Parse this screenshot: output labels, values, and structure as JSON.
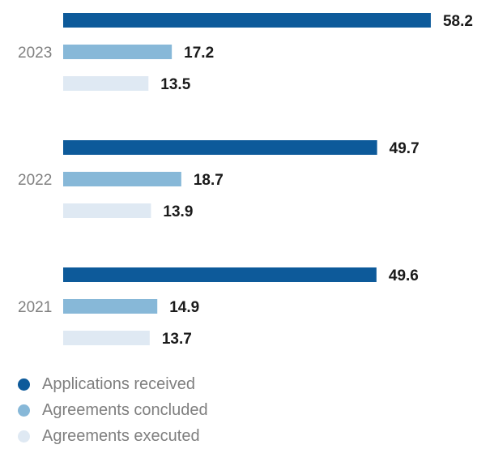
{
  "chart_data": {
    "type": "bar",
    "orientation": "horizontal",
    "categories": [
      "2023",
      "2022",
      "2021"
    ],
    "series": [
      {
        "name": "Applications received",
        "color": "#0d5a9a",
        "values": [
          58.2,
          49.7,
          49.6
        ]
      },
      {
        "name": "Agreements concluded",
        "color": "#87b8d8",
        "values": [
          17.2,
          18.7,
          14.9
        ]
      },
      {
        "name": "Agreements executed",
        "color": "#dfe9f3",
        "values": [
          13.5,
          13.9,
          13.7
        ]
      }
    ],
    "data_labels": true,
    "legend_position": "bottom-left",
    "grid": false
  }
}
